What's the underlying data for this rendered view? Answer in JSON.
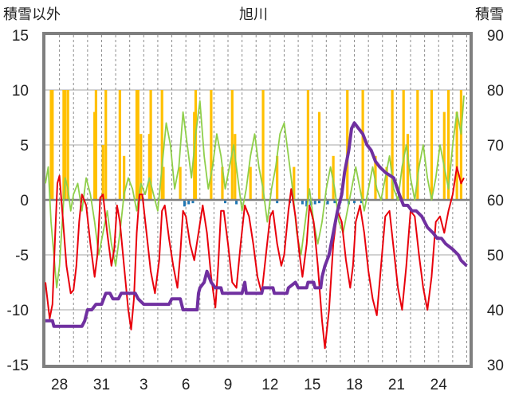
{
  "chart_data": {
    "type": "line",
    "title": "旭川",
    "left_axis_label": "積雪以外",
    "right_axis_label": "積雪",
    "left_ylim": [
      -15,
      15
    ],
    "left_ticks": [
      -15,
      -10,
      -5,
      0,
      5,
      10,
      15
    ],
    "right_ylim": [
      30,
      90
    ],
    "right_ticks": [
      30,
      40,
      50,
      60,
      70,
      80,
      90
    ],
    "x_tick_labels": [
      "28",
      "31",
      "3",
      "6",
      "9",
      "12",
      "15",
      "18",
      "21",
      "24"
    ],
    "x_tick_day_index": [
      1,
      4,
      7,
      10,
      13,
      16,
      19,
      22,
      25,
      28
    ],
    "x_range_days": [
      0,
      30.2
    ],
    "grid": true,
    "colors": {
      "temperature": "#e8000b",
      "humidity": "#8fcf4a",
      "sunshine": "#ffc000",
      "snow_depth": "#7030a0",
      "precipitation": "#1f77b4",
      "zero_line": "#808080"
    },
    "temperature": [
      [
        0.0,
        -7.5
      ],
      [
        0.3,
        -10.8
      ],
      [
        0.5,
        -9.5
      ],
      [
        0.7,
        -3
      ],
      [
        0.85,
        1.5
      ],
      [
        1.0,
        2.2
      ],
      [
        1.2,
        -1
      ],
      [
        1.5,
        -6
      ],
      [
        1.8,
        -8.5
      ],
      [
        2.0,
        -8.2
      ],
      [
        2.2,
        -6
      ],
      [
        2.4,
        -2
      ],
      [
        2.6,
        0.5
      ],
      [
        2.9,
        -0.5
      ],
      [
        3.2,
        -4
      ],
      [
        3.5,
        -7
      ],
      [
        3.7,
        -5
      ],
      [
        3.9,
        0.2
      ],
      [
        4.1,
        0.5
      ],
      [
        4.4,
        -3
      ],
      [
        4.7,
        -6
      ],
      [
        4.9,
        -4.5
      ],
      [
        5.1,
        -0.5
      ],
      [
        5.3,
        -2
      ],
      [
        5.6,
        -6
      ],
      [
        5.9,
        -10
      ],
      [
        6.1,
        -11.8
      ],
      [
        6.3,
        -9
      ],
      [
        6.5,
        -3
      ],
      [
        6.7,
        0.5
      ],
      [
        6.9,
        0.5
      ],
      [
        7.2,
        -3
      ],
      [
        7.5,
        -6.5
      ],
      [
        7.8,
        -8.5
      ],
      [
        8.1,
        -5.5
      ],
      [
        8.3,
        -1
      ],
      [
        8.5,
        -0.5
      ],
      [
        8.8,
        -3.5
      ],
      [
        9.1,
        -6
      ],
      [
        9.4,
        -8
      ],
      [
        9.6,
        -5
      ],
      [
        9.8,
        -1
      ],
      [
        10.0,
        -1.5
      ],
      [
        10.3,
        -4
      ],
      [
        10.6,
        -5.5
      ],
      [
        10.9,
        -3
      ],
      [
        11.2,
        -0.5
      ],
      [
        11.5,
        -3
      ],
      [
        11.8,
        -7
      ],
      [
        12.1,
        -9.8
      ],
      [
        12.3,
        -6
      ],
      [
        12.5,
        -1
      ],
      [
        12.7,
        -1
      ],
      [
        13.0,
        -4
      ],
      [
        13.3,
        -7.5
      ],
      [
        13.6,
        -8
      ],
      [
        13.9,
        -4
      ],
      [
        14.2,
        -0.5
      ],
      [
        14.5,
        -1.5
      ],
      [
        14.8,
        -4
      ],
      [
        15.1,
        -7
      ],
      [
        15.4,
        -8.5
      ],
      [
        15.7,
        -5
      ],
      [
        16.0,
        -1.5
      ],
      [
        16.2,
        -1
      ],
      [
        16.5,
        -4
      ],
      [
        16.8,
        -6
      ],
      [
        17.0,
        -5
      ],
      [
        17.3,
        -1
      ],
      [
        17.5,
        1
      ],
      [
        17.8,
        -1.5
      ],
      [
        18.1,
        -5
      ],
      [
        18.3,
        -7
      ],
      [
        18.6,
        -4
      ],
      [
        18.8,
        -0.5
      ],
      [
        19.1,
        -2
      ],
      [
        19.4,
        -6
      ],
      [
        19.7,
        -11
      ],
      [
        19.9,
        -13.5
      ],
      [
        20.2,
        -10
      ],
      [
        20.5,
        -4
      ],
      [
        20.8,
        -1
      ],
      [
        21.1,
        -2
      ],
      [
        21.4,
        -5.5
      ],
      [
        21.7,
        -8
      ],
      [
        21.9,
        -6
      ],
      [
        22.1,
        -2
      ],
      [
        22.4,
        -0.5
      ],
      [
        22.7,
        -3
      ],
      [
        23.0,
        -6.5
      ],
      [
        23.3,
        -9
      ],
      [
        23.6,
        -10.5
      ],
      [
        23.9,
        -6
      ],
      [
        24.2,
        -1.5
      ],
      [
        24.5,
        -1
      ],
      [
        24.8,
        -4.5
      ],
      [
        25.1,
        -8
      ],
      [
        25.4,
        -10
      ],
      [
        25.7,
        -6
      ],
      [
        26.0,
        -1
      ],
      [
        26.3,
        -1.5
      ],
      [
        26.6,
        -5
      ],
      [
        26.9,
        -8
      ],
      [
        27.2,
        -10
      ],
      [
        27.5,
        -7
      ],
      [
        27.8,
        -2
      ],
      [
        28.1,
        -1.5
      ],
      [
        28.4,
        -3
      ],
      [
        28.7,
        -1
      ],
      [
        29.0,
        0.5
      ],
      [
        29.3,
        3
      ],
      [
        29.6,
        1.5
      ],
      [
        29.8,
        2
      ]
    ],
    "humidity": [
      [
        0.0,
        1.5
      ],
      [
        0.2,
        3
      ],
      [
        0.4,
        -2
      ],
      [
        0.6,
        -5
      ],
      [
        0.8,
        -8
      ],
      [
        1.0,
        -6
      ],
      [
        1.2,
        -2
      ],
      [
        1.4,
        2
      ],
      [
        1.6,
        1
      ],
      [
        1.8,
        -1
      ],
      [
        2.0,
        0.5
      ],
      [
        2.3,
        1.5
      ],
      [
        2.6,
        -1
      ],
      [
        2.9,
        2
      ],
      [
        3.2,
        0.5
      ],
      [
        3.5,
        -2
      ],
      [
        3.8,
        -5
      ],
      [
        4.1,
        -3
      ],
      [
        4.4,
        -1
      ],
      [
        4.7,
        -4
      ],
      [
        5.0,
        -6
      ],
      [
        5.3,
        -3
      ],
      [
        5.6,
        0.5
      ],
      [
        5.9,
        2
      ],
      [
        6.2,
        1
      ],
      [
        6.5,
        -1
      ],
      [
        6.8,
        1.5
      ],
      [
        7.1,
        0.5
      ],
      [
        7.4,
        2
      ],
      [
        7.7,
        0.5
      ],
      [
        8.0,
        -1
      ],
      [
        8.3,
        3
      ],
      [
        8.6,
        7
      ],
      [
        8.9,
        5
      ],
      [
        9.2,
        1
      ],
      [
        9.5,
        3
      ],
      [
        9.8,
        8
      ],
      [
        10.1,
        5
      ],
      [
        10.4,
        2
      ],
      [
        10.7,
        6
      ],
      [
        11.0,
        9
      ],
      [
        11.3,
        4
      ],
      [
        11.6,
        1
      ],
      [
        11.9,
        3
      ],
      [
        12.2,
        6
      ],
      [
        12.5,
        4
      ],
      [
        12.8,
        1
      ],
      [
        13.1,
        3
      ],
      [
        13.4,
        5
      ],
      [
        13.7,
        2
      ],
      [
        14.0,
        -1
      ],
      [
        14.3,
        1
      ],
      [
        14.6,
        4
      ],
      [
        14.9,
        6
      ],
      [
        15.2,
        3
      ],
      [
        15.5,
        1
      ],
      [
        15.8,
        -2
      ],
      [
        16.1,
        1
      ],
      [
        16.4,
        3
      ],
      [
        16.7,
        6
      ],
      [
        17.0,
        7
      ],
      [
        17.3,
        4
      ],
      [
        17.6,
        1
      ],
      [
        17.9,
        -3
      ],
      [
        18.2,
        -5
      ],
      [
        18.5,
        -2
      ],
      [
        18.8,
        1
      ],
      [
        19.1,
        -2
      ],
      [
        19.4,
        -4
      ],
      [
        19.7,
        -2
      ],
      [
        20.0,
        1
      ],
      [
        20.3,
        3
      ],
      [
        20.6,
        1
      ],
      [
        20.9,
        -2
      ],
      [
        21.2,
        -3
      ],
      [
        21.5,
        -1
      ],
      [
        21.8,
        1
      ],
      [
        22.1,
        3
      ],
      [
        22.4,
        1
      ],
      [
        22.7,
        -1
      ],
      [
        23.0,
        1
      ],
      [
        23.3,
        3
      ],
      [
        23.6,
        1
      ],
      [
        23.9,
        0
      ],
      [
        24.2,
        2
      ],
      [
        24.5,
        4
      ],
      [
        24.8,
        1
      ],
      [
        25.1,
        0
      ],
      [
        25.4,
        3
      ],
      [
        25.7,
        5
      ],
      [
        26.0,
        2
      ],
      [
        26.3,
        0
      ],
      [
        26.6,
        3
      ],
      [
        26.9,
        5
      ],
      [
        27.2,
        2
      ],
      [
        27.5,
        0
      ],
      [
        27.8,
        2
      ],
      [
        28.1,
        5
      ],
      [
        28.4,
        3
      ],
      [
        28.7,
        1
      ],
      [
        29.0,
        5
      ],
      [
        29.3,
        8
      ],
      [
        29.6,
        6
      ],
      [
        29.8,
        9.5
      ]
    ],
    "sunshine_bar_days": [
      0.4,
      0.5,
      1.3,
      1.4,
      1.6,
      3.5,
      3.6,
      4.1,
      4.3,
      5.3,
      5.6,
      6.5,
      6.6,
      6.8,
      7.4,
      7.5,
      8.3,
      8.4,
      9.6,
      10.6,
      10.7,
      11.8,
      12.6,
      13.3,
      13.5,
      14.6,
      15.5,
      16.5,
      17.7,
      18.7,
      19.5,
      20.5,
      21.5,
      22.6,
      23.5,
      24.3,
      24.7,
      25.5,
      25.8,
      26.5,
      27.5,
      28.4,
      28.7,
      29.3,
      29.6
    ],
    "sunshine_bar_values": [
      10,
      10,
      10,
      10,
      10,
      8,
      10,
      5,
      10,
      10,
      4,
      10,
      10,
      6,
      6,
      10,
      10,
      3,
      3,
      8,
      10,
      10,
      3,
      10,
      6,
      3,
      10,
      4,
      3,
      10,
      8,
      4,
      10,
      10,
      4,
      3,
      10,
      10,
      6,
      10,
      10,
      8,
      10,
      8,
      10
    ],
    "precipitation": [
      [
        9.9,
        -0.6
      ],
      [
        10.2,
        -0.4
      ],
      [
        10.5,
        -0.3
      ],
      [
        12.8,
        -0.3
      ],
      [
        13.6,
        -0.4
      ],
      [
        16.5,
        -0.3
      ],
      [
        17.4,
        -0.3
      ],
      [
        18.3,
        -0.4
      ],
      [
        18.6,
        -0.6
      ],
      [
        18.9,
        -0.5
      ],
      [
        19.2,
        -0.4
      ],
      [
        19.5,
        -0.3
      ],
      [
        20.1,
        -0.4
      ],
      [
        20.6,
        -0.3
      ],
      [
        21.0,
        -0.3
      ],
      [
        21.6,
        -0.4
      ],
      [
        22.0,
        -0.3
      ],
      [
        22.5,
        -0.3
      ]
    ],
    "snow_depth": [
      [
        0.0,
        38
      ],
      [
        0.5,
        38
      ],
      [
        0.6,
        37
      ],
      [
        2.6,
        37
      ],
      [
        2.8,
        38
      ],
      [
        3.0,
        40
      ],
      [
        3.3,
        40
      ],
      [
        3.6,
        41
      ],
      [
        4.0,
        41
      ],
      [
        4.3,
        43
      ],
      [
        4.6,
        43
      ],
      [
        4.8,
        42
      ],
      [
        5.2,
        42
      ],
      [
        5.4,
        43
      ],
      [
        6.4,
        43
      ],
      [
        6.6,
        42
      ],
      [
        7.0,
        41
      ],
      [
        8.8,
        41
      ],
      [
        9.0,
        42
      ],
      [
        9.6,
        42
      ],
      [
        9.8,
        40
      ],
      [
        10.8,
        40
      ],
      [
        10.9,
        43
      ],
      [
        11.0,
        44
      ],
      [
        11.3,
        45
      ],
      [
        11.5,
        47
      ],
      [
        11.8,
        45
      ],
      [
        12.1,
        44
      ],
      [
        12.5,
        44
      ],
      [
        12.6,
        43
      ],
      [
        14.0,
        43
      ],
      [
        14.2,
        45
      ],
      [
        14.3,
        43
      ],
      [
        15.4,
        43
      ],
      [
        15.5,
        44
      ],
      [
        16.2,
        44
      ],
      [
        16.3,
        43
      ],
      [
        17.2,
        43
      ],
      [
        17.3,
        44
      ],
      [
        17.8,
        45
      ],
      [
        18.0,
        44
      ],
      [
        18.6,
        44
      ],
      [
        18.7,
        45
      ],
      [
        19.1,
        45
      ],
      [
        19.2,
        44
      ],
      [
        19.6,
        44
      ],
      [
        19.7,
        46
      ],
      [
        19.9,
        48
      ],
      [
        20.2,
        50
      ],
      [
        20.5,
        54
      ],
      [
        20.8,
        58
      ],
      [
        21.1,
        61
      ],
      [
        21.3,
        65
      ],
      [
        21.6,
        69
      ],
      [
        21.8,
        73
      ],
      [
        22.0,
        74
      ],
      [
        22.3,
        73
      ],
      [
        22.6,
        72
      ],
      [
        22.9,
        70
      ],
      [
        23.2,
        69
      ],
      [
        23.5,
        67
      ],
      [
        23.8,
        66
      ],
      [
        24.2,
        65
      ],
      [
        24.8,
        64
      ],
      [
        25.2,
        61
      ],
      [
        25.5,
        59
      ],
      [
        25.8,
        59
      ],
      [
        26.1,
        58
      ],
      [
        26.4,
        58
      ],
      [
        26.8,
        57
      ],
      [
        27.2,
        55
      ],
      [
        27.6,
        54
      ],
      [
        27.9,
        53
      ],
      [
        28.2,
        53
      ],
      [
        28.5,
        52
      ],
      [
        29.0,
        51
      ],
      [
        29.4,
        50
      ],
      [
        29.6,
        49
      ],
      [
        30.0,
        48
      ]
    ]
  }
}
